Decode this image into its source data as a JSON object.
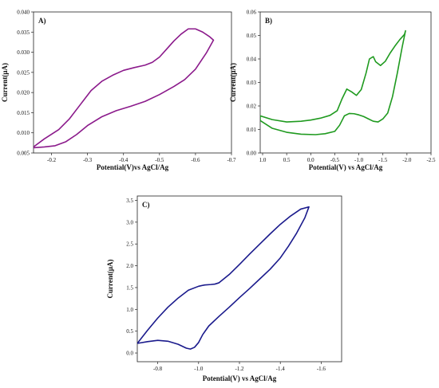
{
  "chart_data": [
    {
      "type": "line",
      "panel_label": "A)",
      "xlabel": "Potential(V)vs AgCl/Ag",
      "ylabel": "Current(μA)",
      "x_reversed": true,
      "xlim": [
        -0.15,
        -0.7
      ],
      "ylim": [
        0.005,
        0.04
      ],
      "xticks": [
        -0.2,
        -0.3,
        -0.4,
        -0.5,
        -0.6,
        -0.7
      ],
      "xtick_labels": [
        "-0.2",
        "-0.3",
        "-0.4",
        "-0.5",
        "-0.6",
        "-0.7"
      ],
      "yticks": [
        0.005,
        0.01,
        0.015,
        0.02,
        0.025,
        0.03,
        0.035,
        0.04
      ],
      "ytick_labels": [
        "0.005",
        "0.010",
        "0.015",
        "0.020",
        "0.025",
        "0.030",
        "0.035",
        "0.040"
      ],
      "color": "#8b1a8b",
      "series": [
        {
          "x": [
            -0.15,
            -0.18,
            -0.22,
            -0.25,
            -0.28,
            -0.31,
            -0.34,
            -0.37,
            -0.4,
            -0.43,
            -0.46,
            -0.48,
            -0.5,
            -0.52,
            -0.54,
            -0.56,
            -0.58,
            -0.6,
            -0.62,
            -0.64,
            -0.65,
            -0.63,
            -0.6,
            -0.57,
            -0.54,
            -0.5,
            -0.46,
            -0.42,
            -0.38,
            -0.34,
            -0.3,
            -0.27,
            -0.24,
            -0.21,
            -0.18,
            -0.15
          ],
          "y": [
            0.0065,
            0.0085,
            0.0108,
            0.0135,
            0.017,
            0.0205,
            0.0228,
            0.0243,
            0.0255,
            0.0262,
            0.0268,
            0.0275,
            0.0288,
            0.0308,
            0.0328,
            0.0345,
            0.0358,
            0.0358,
            0.035,
            0.0338,
            0.033,
            0.0298,
            0.0258,
            0.0232,
            0.0215,
            0.0195,
            0.0178,
            0.0166,
            0.0155,
            0.014,
            0.0118,
            0.0096,
            0.0078,
            0.0068,
            0.0065,
            0.0063
          ]
        }
      ]
    },
    {
      "type": "line",
      "panel_label": "B)",
      "xlabel": "Potential(V) vs AgCl/Ag",
      "ylabel": "Current(μA)",
      "x_reversed": true,
      "xlim": [
        1.05,
        -2.5
      ],
      "ylim": [
        0.0,
        0.06
      ],
      "xticks": [
        1.0,
        0.5,
        0.0,
        -0.5,
        -1.0,
        -1.5,
        -2.0,
        -2.5
      ],
      "xtick_labels": [
        "1.0",
        "0.5",
        "0.0",
        "-0.5",
        "-1.0",
        "-1.5",
        "-2.0",
        "-2.5"
      ],
      "yticks": [
        0.0,
        0.01,
        0.02,
        0.03,
        0.04,
        0.05,
        0.06
      ],
      "ytick_labels": [
        "0.00",
        "0.01",
        "0.02",
        "0.03",
        "0.04",
        "0.05",
        "0.06"
      ],
      "color": "#1f9a1f",
      "series": [
        {
          "x": [
            1.05,
            0.8,
            0.5,
            0.2,
            0.0,
            -0.2,
            -0.4,
            -0.55,
            -0.65,
            -0.75,
            -0.85,
            -0.95,
            -1.05,
            -1.15,
            -1.22,
            -1.3,
            -1.35,
            -1.45,
            -1.55,
            -1.65,
            -1.75,
            -1.85,
            -1.95,
            -1.97,
            -1.9,
            -1.8,
            -1.7,
            -1.6,
            -1.5,
            -1.4,
            -1.3,
            -1.2,
            -1.1,
            -1.0,
            -0.9,
            -0.8,
            -0.7,
            -0.6,
            -0.5,
            -0.3,
            -0.1,
            0.2,
            0.5,
            0.8,
            1.05
          ],
          "y": [
            0.0158,
            0.0142,
            0.0132,
            0.0135,
            0.014,
            0.0148,
            0.016,
            0.018,
            0.023,
            0.0272,
            0.026,
            0.0245,
            0.027,
            0.034,
            0.04,
            0.041,
            0.0388,
            0.0372,
            0.039,
            0.0425,
            0.0455,
            0.0482,
            0.0505,
            0.052,
            0.045,
            0.034,
            0.024,
            0.017,
            0.0145,
            0.0132,
            0.0135,
            0.0145,
            0.0155,
            0.0162,
            0.0167,
            0.0168,
            0.0158,
            0.0118,
            0.0092,
            0.0082,
            0.0078,
            0.008,
            0.0088,
            0.0105,
            0.0138
          ]
        }
      ]
    },
    {
      "type": "line",
      "panel_label": "C)",
      "xlabel": "Potential(V) vs AgCl/Ag",
      "ylabel": "Current(μA)",
      "x_reversed": true,
      "xlim": [
        -0.7,
        -1.7
      ],
      "ylim": [
        -0.2,
        3.6
      ],
      "xticks": [
        -0.8,
        -1.0,
        -1.2,
        -1.4,
        -1.6
      ],
      "xtick_labels": [
        "-0.8",
        "-1.0",
        "-1.2",
        "-1.4",
        "-1.6"
      ],
      "yticks": [
        0.0,
        0.5,
        1.0,
        1.5,
        2.0,
        2.5,
        3.0,
        3.5
      ],
      "ytick_labels": [
        "0.0",
        "0.5",
        "1.0",
        "1.5",
        "2.0",
        "2.5",
        "3.0",
        "3.5"
      ],
      "color": "#1a1a8c",
      "series": [
        {
          "x": [
            -0.7,
            -0.75,
            -0.8,
            -0.85,
            -0.9,
            -0.95,
            -1.0,
            -1.03,
            -1.06,
            -1.08,
            -1.1,
            -1.15,
            -1.2,
            -1.25,
            -1.3,
            -1.35,
            -1.4,
            -1.45,
            -1.5,
            -1.54,
            -1.52,
            -1.48,
            -1.44,
            -1.4,
            -1.35,
            -1.3,
            -1.25,
            -1.2,
            -1.15,
            -1.1,
            -1.05,
            -1.02,
            -1.0,
            -0.98,
            -0.96,
            -0.94,
            -0.9,
            -0.85,
            -0.8,
            -0.75,
            -0.7
          ],
          "y": [
            0.22,
            0.52,
            0.8,
            1.05,
            1.26,
            1.44,
            1.53,
            1.56,
            1.57,
            1.58,
            1.61,
            1.8,
            2.03,
            2.27,
            2.5,
            2.73,
            2.95,
            3.14,
            3.3,
            3.35,
            3.1,
            2.75,
            2.45,
            2.18,
            1.92,
            1.7,
            1.48,
            1.27,
            1.05,
            0.84,
            0.62,
            0.42,
            0.24,
            0.13,
            0.09,
            0.11,
            0.2,
            0.27,
            0.29,
            0.26,
            0.22
          ]
        }
      ]
    }
  ]
}
